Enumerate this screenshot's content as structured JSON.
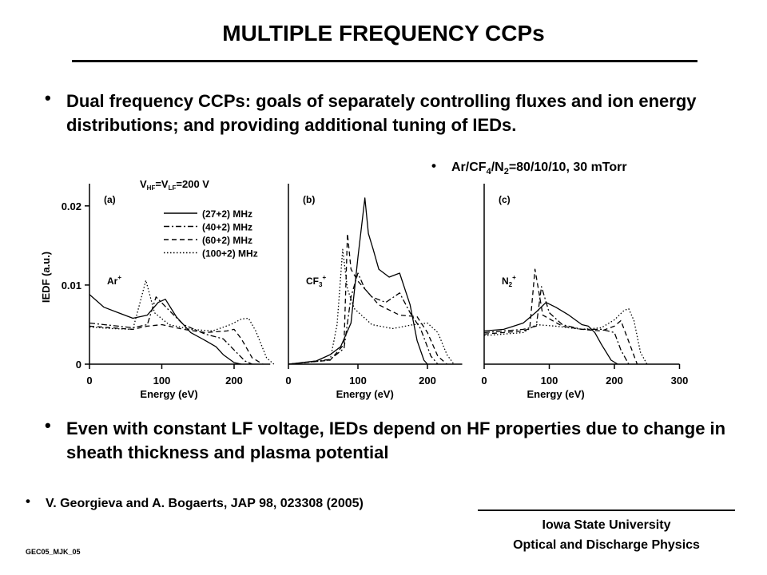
{
  "title": "MULTIPLE FREQUENCY CCPs",
  "bullets": {
    "b1": "Dual frequency CCPs: goals of separately controlling fluxes and ion energy distributions; and providing additional tuning of IEDs.",
    "b2_parts": [
      "Ar/CF",
      "4",
      "/N",
      "2",
      "=80/10/10, 30 mTorr"
    ],
    "b3": "Even with constant LF voltage, IEDs depend on HF properties due to change in sheath thickness and plasma potential",
    "b4": "V. Georgieva and A. Bogaerts, JAP 98, 023308 (2005)"
  },
  "footer": {
    "line1": "Iowa State University",
    "line2": "Optical and Discharge Physics",
    "code": "GEC05_MJK_05"
  },
  "chart_data": {
    "type": "line",
    "ylabel": "IEDF (a.u.)",
    "y_ticks": [
      "0",
      "0.01",
      "0.02"
    ],
    "ylim": [
      0,
      0.022
    ],
    "header": {
      "prefix": "V",
      "sub1": "HF",
      "mid": "=V",
      "sub2": "LF",
      "suffix": "=200 V"
    },
    "legend": {
      "placement": "top-left of panel (a)",
      "entries": [
        "(27+2) MHz",
        "(40+2) MHz",
        "(60+2) MHz",
        "(100+2) MHz"
      ],
      "styles": [
        "solid",
        "dashdot",
        "dashed",
        "dotted"
      ]
    },
    "panels": [
      {
        "label": "(a)",
        "ion": "Ar",
        "ion_sub": "",
        "ion_sup": "+",
        "xlabel": "Energy (eV)",
        "xlim": [
          0,
          250
        ],
        "x_ticks": [
          "0",
          "100",
          "200"
        ],
        "series": [
          {
            "x": [
              0,
              20,
              40,
              60,
              80,
              95,
              105,
              120,
              140,
              160,
              175,
              185,
              200,
              210
            ],
            "y": [
              0.0088,
              0.0072,
              0.0065,
              0.0058,
              0.0062,
              0.0078,
              0.0082,
              0.006,
              0.004,
              0.003,
              0.0022,
              0.0012,
              0.0002,
              0
            ]
          },
          {
            "x": [
              0,
              20,
              40,
              60,
              80,
              92,
              110,
              130,
              160,
              185,
              200,
              215,
              225
            ],
            "y": [
              0.0052,
              0.005,
              0.0048,
              0.0046,
              0.005,
              0.0085,
              0.0068,
              0.005,
              0.0038,
              0.0032,
              0.0018,
              0.0004,
              0
            ]
          },
          {
            "x": [
              0,
              30,
              60,
              80,
              100,
              130,
              160,
              190,
              200,
              210,
              225,
              240
            ],
            "y": [
              0.0048,
              0.0046,
              0.0044,
              0.0048,
              0.005,
              0.0044,
              0.004,
              0.0042,
              0.0044,
              0.0032,
              0.0008,
              0
            ]
          },
          {
            "x": [
              0,
              30,
              60,
              70,
              78,
              90,
              110,
              140,
              170,
              195,
              210,
              220,
              230,
              245,
              255
            ],
            "y": [
              0.0047,
              0.0045,
              0.0044,
              0.0078,
              0.0106,
              0.0065,
              0.005,
              0.0044,
              0.0042,
              0.005,
              0.0057,
              0.0058,
              0.0042,
              0.0008,
              0
            ]
          }
        ]
      },
      {
        "label": "(b)",
        "ion": "CF",
        "ion_sub": "3",
        "ion_sup": "+",
        "xlabel": "Energy (eV)",
        "xlim": [
          0,
          250
        ],
        "x_ticks": [
          "0",
          "100",
          "200"
        ],
        "series": [
          {
            "x": [
              0,
              40,
              60,
              75,
              90,
              100,
              110,
              115,
              122,
              130,
              145,
              160,
              175,
              185,
              195,
              200
            ],
            "y": [
              0,
              0.0004,
              0.0012,
              0.0022,
              0.0052,
              0.0135,
              0.021,
              0.0165,
              0.0145,
              0.012,
              0.011,
              0.0115,
              0.0075,
              0.003,
              0.0005,
              0
            ]
          },
          {
            "x": [
              0,
              60,
              80,
              90,
              100,
              110,
              120,
              140,
              160,
              175,
              190,
              205,
              215
            ],
            "y": [
              0,
              0.0006,
              0.002,
              0.0085,
              0.0115,
              0.0095,
              0.0085,
              0.0078,
              0.009,
              0.0065,
              0.0045,
              0.001,
              0
            ]
          },
          {
            "x": [
              0,
              60,
              80,
              85,
              90,
              100,
              115,
              130,
              160,
              185,
              200,
              215,
              228
            ],
            "y": [
              0,
              0.0005,
              0.0025,
              0.0165,
              0.012,
              0.0105,
              0.009,
              0.0075,
              0.0062,
              0.006,
              0.004,
              0.001,
              0
            ]
          },
          {
            "x": [
              0,
              60,
              70,
              78,
              85,
              95,
              120,
              150,
              180,
              200,
              215,
              228,
              238
            ],
            "y": [
              0,
              0.0005,
              0.005,
              0.0145,
              0.0095,
              0.007,
              0.005,
              0.0045,
              0.005,
              0.0052,
              0.004,
              0.0012,
              0
            ]
          }
        ]
      },
      {
        "label": "(c)",
        "ion": "N",
        "ion_sub": "2",
        "ion_sup": "+",
        "xlabel": "Energy (eV)",
        "xlim": [
          0,
          300
        ],
        "x_ticks": [
          "0",
          "100",
          "200",
          "300"
        ],
        "series": [
          {
            "x": [
              0,
              30,
              60,
              80,
              95,
              110,
              130,
              150,
              160,
              170,
              180,
              195,
              205
            ],
            "y": [
              0.0042,
              0.0044,
              0.0052,
              0.0066,
              0.0078,
              0.0072,
              0.0062,
              0.005,
              0.0048,
              0.004,
              0.0025,
              0.0005,
              0
            ]
          },
          {
            "x": [
              0,
              30,
              60,
              80,
              88,
              100,
              120,
              150,
              180,
              200,
              210,
              222
            ],
            "y": [
              0.004,
              0.0042,
              0.0044,
              0.0048,
              0.0098,
              0.0065,
              0.005,
              0.0044,
              0.0044,
              0.004,
              0.0018,
              0
            ]
          },
          {
            "x": [
              0,
              30,
              60,
              70,
              78,
              90,
              120,
              150,
              180,
              200,
              210,
              225,
              235
            ],
            "y": [
              0.0038,
              0.004,
              0.0042,
              0.0045,
              0.012,
              0.0062,
              0.0048,
              0.0044,
              0.0042,
              0.0048,
              0.0055,
              0.0022,
              0
            ]
          },
          {
            "x": [
              0,
              30,
              60,
              80,
              110,
              150,
              180,
              200,
              215,
              222,
              230,
              240,
              250
            ],
            "y": [
              0.0036,
              0.0038,
              0.004,
              0.005,
              0.0048,
              0.0044,
              0.0046,
              0.0056,
              0.0068,
              0.007,
              0.0055,
              0.0015,
              0
            ]
          }
        ]
      }
    ]
  }
}
